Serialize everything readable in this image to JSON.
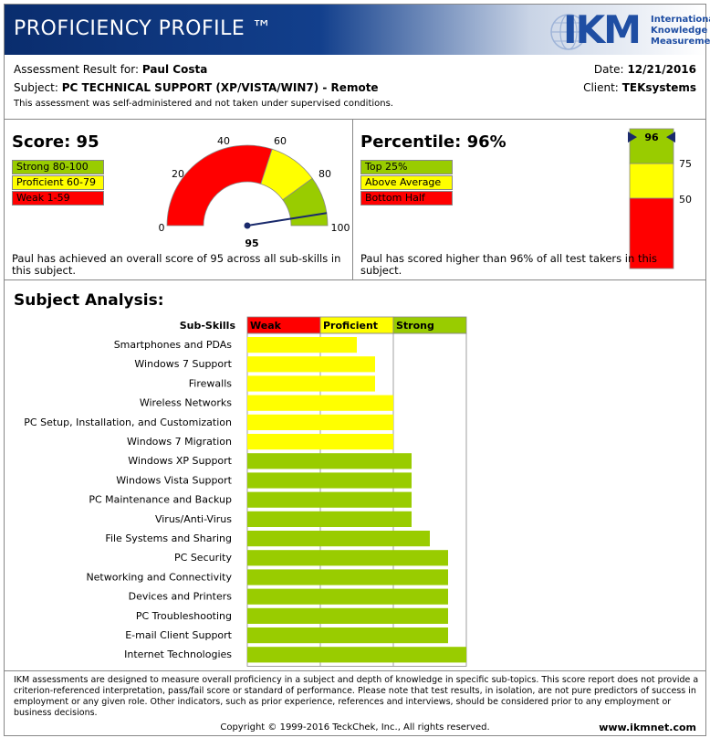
{
  "header": {
    "title": "PROFICIENCY PROFILE ™",
    "logo_text": "IKM",
    "logo_tagline": [
      "International",
      "Knowledge",
      "Measurement"
    ]
  },
  "info": {
    "result_label": "Assessment Result for:",
    "candidate": "Paul Costa",
    "subject_label": "Subject:",
    "subject": "PC TECHNICAL SUPPORT (XP/VISTA/WIN7) - Remote",
    "note": "This assessment was self-administered and not taken under supervised conditions.",
    "date_label": "Date:",
    "date": "12/21/2016",
    "client_label": "Client:",
    "client": "TEKsystems"
  },
  "score": {
    "title": "Score: 95",
    "value": 95,
    "legend": [
      "Strong 80-100",
      "Proficient 60-79",
      "Weak 1-59"
    ],
    "gauge_ticks": [
      "0",
      "20",
      "40",
      "60",
      "80",
      "100"
    ],
    "description": "Paul has achieved an overall score of 95 across all sub-skills in this subject."
  },
  "percentile": {
    "title": "Percentile: 96%",
    "value": 96,
    "legend": [
      "Top 25%",
      "Above Average",
      "Bottom Half"
    ],
    "bar_ticks": [
      "75",
      "50"
    ],
    "marker_label": "96",
    "description": "Paul has scored higher than 96% of all test takers in this subject."
  },
  "analysis": {
    "title": "Subject Analysis:",
    "header_label": "Sub-Skills",
    "bands": [
      "Weak",
      "Proficient",
      "Strong"
    ],
    "colors": {
      "weak": "#ff0000",
      "proficient": "#ffff00",
      "strong": "#99cc00"
    },
    "skills": [
      {
        "name": "Smartphones and PDAs",
        "value": 60
      },
      {
        "name": "Windows 7 Support",
        "value": 70
      },
      {
        "name": "Firewalls",
        "value": 70
      },
      {
        "name": "Wireless Networks",
        "value": 80
      },
      {
        "name": "PC Setup, Installation, and Customization",
        "value": 80
      },
      {
        "name": "Windows 7 Migration",
        "value": 80
      },
      {
        "name": "Windows XP Support",
        "value": 90
      },
      {
        "name": "Windows Vista Support",
        "value": 90
      },
      {
        "name": "PC Maintenance and Backup",
        "value": 90
      },
      {
        "name": "Virus/Anti-Virus",
        "value": 90
      },
      {
        "name": "File Systems and Sharing",
        "value": 100
      },
      {
        "name": "PC Security",
        "value": 110
      },
      {
        "name": "Networking and Connectivity",
        "value": 110
      },
      {
        "name": "Devices and Printers",
        "value": 110
      },
      {
        "name": "PC Troubleshooting",
        "value": 110
      },
      {
        "name": "E-mail Client Support",
        "value": 110
      },
      {
        "name": "Internet Technologies",
        "value": 120
      }
    ]
  },
  "footer": {
    "disclaimer": "IKM assessments are designed to measure overall proficiency in a subject and depth of knowledge in specific sub-topics. This score report does not provide a criterion-referenced interpretation, pass/fail score or standard of performance. Please note that test results, in isolation, are not pure predictors of success in employment or any given role. Other indicators, such as prior experience, references and interviews, should be considered prior to any employment or business decisions.",
    "copyright": "Copyright © 1999-2016 TeckChek, Inc., All rights reserved.",
    "website": "www.ikmnet.com"
  }
}
